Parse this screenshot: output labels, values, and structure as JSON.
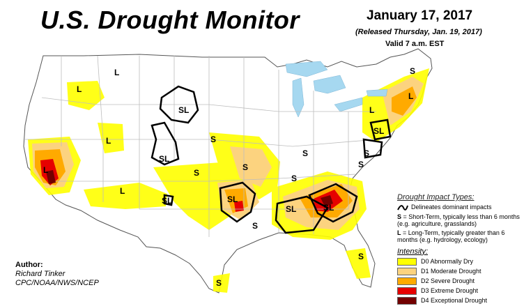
{
  "header": {
    "title": "U.S. Drought Monitor",
    "date": "January 17, 2017",
    "released": "(Released Thursday, Jan. 19, 2017)",
    "valid": "Valid 7 a.m. EST"
  },
  "author": {
    "heading": "Author:",
    "name": "Richard Tinker",
    "org": "CPC/NOAA/NWS/NCEP"
  },
  "legend": {
    "impact_title": "Drought Impact Types:",
    "delineates": "Delineates dominant impacts",
    "s_key": "S",
    "s_text": "= Short-Term, typically less than 6 months (e.g. agriculture, grasslands)",
    "l_key": "L",
    "l_text": "= Long-Term, typically greater than 6 months (e.g. hydrology, ecology)",
    "intensity_title": "Intensity:",
    "levels": [
      {
        "label": "D0 Abnormally Dry",
        "color": "#ffff00"
      },
      {
        "label": "D1 Moderate Drought",
        "color": "#fcd37f"
      },
      {
        "label": "D2 Severe Drought",
        "color": "#ffaa00"
      },
      {
        "label": "D3 Extreme Drought",
        "color": "#e60000"
      },
      {
        "label": "D4 Exceptional Drought",
        "color": "#730000"
      }
    ]
  },
  "map_labels": [
    "L",
    "L",
    "SL",
    "L",
    "SL",
    "S",
    "L",
    "S",
    "S",
    "L",
    "SL",
    "S",
    "S",
    "SL",
    "SL",
    "S",
    "L",
    "SL",
    "S",
    "S",
    "SL",
    "S",
    "S",
    "L",
    "S"
  ],
  "colors": {
    "water": "#a6d8f0",
    "state_line": "#bdbdbd",
    "outline": "#000000"
  }
}
